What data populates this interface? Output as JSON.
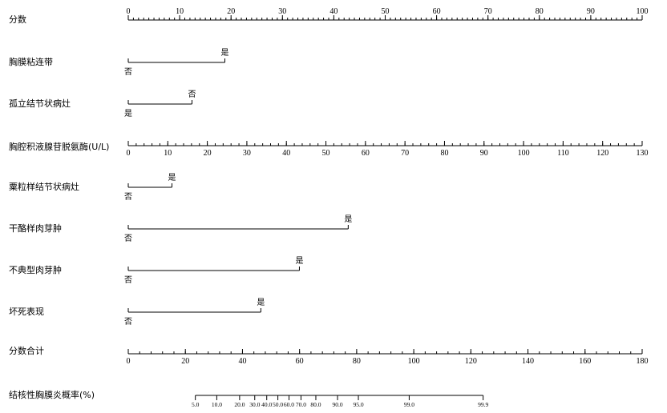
{
  "chart_data": {
    "type": "nomogram",
    "title": "",
    "rows": [
      {
        "kind": "axis",
        "label": "分数",
        "min": 0,
        "max": 100,
        "major_step": 10,
        "minor_step": 1,
        "tick_labels": [
          "0",
          "10",
          "20",
          "30",
          "40",
          "50",
          "60",
          "70",
          "80",
          "90",
          "100"
        ]
      },
      {
        "kind": "categorical",
        "label": "胸膜粘连带",
        "from": 0,
        "to": 18.8,
        "end_label": "是",
        "start_label": "否"
      },
      {
        "kind": "categorical",
        "label": "孤立结节状病灶",
        "from": 0,
        "to": 12.4,
        "end_label": "否",
        "start_label": "是"
      },
      {
        "kind": "axis",
        "label": "胸腔积液腺苷脱氨酶(U/L)",
        "min": 0,
        "max": 130,
        "major_step": 10,
        "minor_step": 2,
        "tick_labels": [
          "0",
          "10",
          "20",
          "30",
          "40",
          "50",
          "60",
          "70",
          "80",
          "90",
          "100",
          "110",
          "120",
          "130"
        ]
      },
      {
        "kind": "categorical",
        "label": "粟粒样结节状病灶",
        "from": 0,
        "to": 8.5,
        "end_label": "是",
        "start_label": "否"
      },
      {
        "kind": "categorical",
        "label": "干酪样肉芽肿",
        "from": 0,
        "to": 42.8,
        "end_label": "是",
        "start_label": "否"
      },
      {
        "kind": "categorical",
        "label": "不典型肉芽肿",
        "from": 0,
        "to": 33.3,
        "end_label": "是",
        "start_label": "否"
      },
      {
        "kind": "categorical",
        "label": "坏死表现",
        "from": 0,
        "to": 25.8,
        "end_label": "是",
        "start_label": "否"
      },
      {
        "kind": "axis",
        "label": "分数合计",
        "min": 0,
        "max": 180,
        "major_step": 20,
        "minor_step": 4,
        "tick_labels": [
          "0",
          "20",
          "40",
          "60",
          "80",
          "100",
          "120",
          "140",
          "160",
          "180"
        ]
      },
      {
        "kind": "probability",
        "label": "结核性胸膜炎概率(%)",
        "total_range": [
          0,
          180
        ],
        "ticks": [
          {
            "label": "5.0",
            "total": 23.5
          },
          {
            "label": "10.0",
            "total": 31.0
          },
          {
            "label": "20.0",
            "total": 39.0
          },
          {
            "label": "30.0",
            "total": 44.3
          },
          {
            "label": "40.0",
            "total": 48.5
          },
          {
            "label": "50.0",
            "total": 52.4
          },
          {
            "label": "60.0",
            "total": 56.3
          },
          {
            "label": "70.0",
            "total": 60.5
          },
          {
            "label": "80.0",
            "total": 65.7
          },
          {
            "label": "90.0",
            "total": 73.3
          },
          {
            "label": "95.0",
            "total": 80.6
          },
          {
            "label": "99.0",
            "total": 98.4
          },
          {
            "label": "99.9",
            "total": 124.3
          }
        ]
      }
    ]
  }
}
